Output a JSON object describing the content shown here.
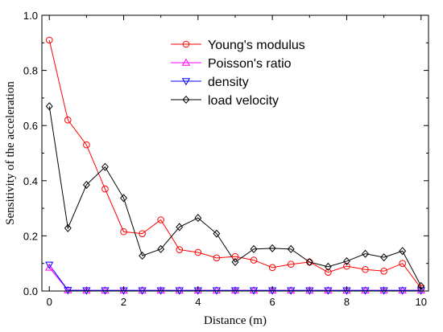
{
  "chart_data": {
    "type": "line",
    "xlabel": "Distance (m)",
    "ylabel": "Sensitivity of the acceleration",
    "xlim": [
      -0.2,
      10.2
    ],
    "ylim": [
      0,
      1.0
    ],
    "x_ticks": [
      "0",
      "2",
      "4",
      "6",
      "8",
      "10"
    ],
    "y_ticks": [
      "0.0",
      "0.2",
      "0.4",
      "0.6",
      "0.8",
      "1.0"
    ],
    "grid": false,
    "legend_position": "top-right",
    "x": [
      0,
      0.5,
      1,
      1.5,
      2,
      2.5,
      3,
      3.5,
      4,
      4.5,
      5,
      5.5,
      6,
      6.5,
      7,
      7.5,
      8,
      8.5,
      9,
      9.5,
      10
    ],
    "series": [
      {
        "name": "Young's modulus",
        "color": "#ff0000",
        "marker": "circle",
        "values": [
          0.91,
          0.62,
          0.53,
          0.37,
          0.215,
          0.208,
          0.258,
          0.15,
          0.14,
          0.12,
          0.125,
          0.112,
          0.085,
          0.097,
          0.105,
          0.068,
          0.09,
          0.078,
          0.072,
          0.1,
          0.01
        ]
      },
      {
        "name": "Poisson's ratio",
        "color": "#ff00ff",
        "marker": "triangle-up",
        "values": [
          0.085,
          0.003,
          0.002,
          0.002,
          0.002,
          0.002,
          0.002,
          0.002,
          0.002,
          0.002,
          0.002,
          0.002,
          0.002,
          0.002,
          0.002,
          0.002,
          0.002,
          0.002,
          0.002,
          0.002,
          0.002
        ]
      },
      {
        "name": "density",
        "color": "#0000ff",
        "marker": "triangle-down",
        "values": [
          0.095,
          0.003,
          0.002,
          0.002,
          0.002,
          0.002,
          0.002,
          0.002,
          0.002,
          0.002,
          0.002,
          0.002,
          0.002,
          0.002,
          0.002,
          0.002,
          0.002,
          0.002,
          0.002,
          0.002,
          0.002
        ]
      },
      {
        "name": "load velocity",
        "color": "#000000",
        "marker": "diamond",
        "values": [
          0.67,
          0.228,
          0.385,
          0.45,
          0.337,
          0.128,
          0.152,
          0.232,
          0.265,
          0.208,
          0.105,
          0.152,
          0.155,
          0.152,
          0.105,
          0.088,
          0.108,
          0.135,
          0.122,
          0.145,
          0.018
        ]
      }
    ]
  }
}
